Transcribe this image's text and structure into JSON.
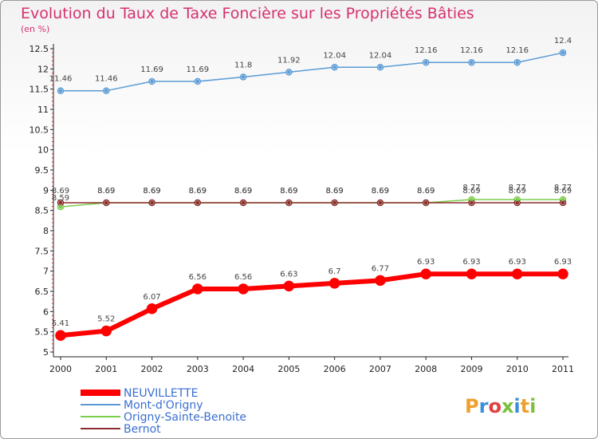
{
  "chart_data": {
    "type": "line",
    "title": "Evolution du Taux de Taxe Foncière sur les Propriétés Bâties",
    "ylabel": "(en %)",
    "xlabel": "",
    "x": [
      "2000",
      "2001",
      "2002",
      "2003",
      "2004",
      "2005",
      "2006",
      "2007",
      "2008",
      "2009",
      "2010",
      "2011"
    ],
    "ylim": [
      5,
      12.5
    ],
    "yticks": [
      "5",
      "5.5",
      "6",
      "6.5",
      "7",
      "7.5",
      "8",
      "8.5",
      "9",
      "9.5",
      "10",
      "10.5",
      "11",
      "11.5",
      "12",
      "12.5"
    ],
    "grid": false,
    "legend_position": "bottom-left",
    "series": [
      {
        "name": "NEUVILLETTE",
        "color": "#ff0000",
        "values": [
          5.41,
          5.52,
          6.07,
          6.56,
          6.56,
          6.63,
          6.7,
          6.77,
          6.93,
          6.93,
          6.93,
          6.93
        ],
        "labels": [
          "5.41",
          "5.52",
          "6.07",
          "6.56",
          "6.56",
          "6.63",
          "6.7",
          "6.77",
          "6.93",
          "6.93",
          "6.93",
          "6.93"
        ]
      },
      {
        "name": "Mont-d'Origny",
        "color": "#5b9bd5",
        "values": [
          11.46,
          11.46,
          11.69,
          11.69,
          11.8,
          11.92,
          12.04,
          12.04,
          12.16,
          12.16,
          12.16,
          12.4
        ],
        "labels": [
          "11.46",
          "11.46",
          "11.69",
          "11.69",
          "11.8",
          "11.92",
          "12.04",
          "12.04",
          "12.16",
          "12.16",
          "12.16",
          "12.4"
        ]
      },
      {
        "name": "Origny-Sainte-Benoite",
        "color": "#7ccd4a",
        "values": [
          8.59,
          8.69,
          8.69,
          8.69,
          8.69,
          8.69,
          8.69,
          8.69,
          8.69,
          8.77,
          8.77,
          8.77
        ],
        "labels": [
          "8.59",
          "8.69",
          "8.69",
          "8.69",
          "8.69",
          "8.69",
          "8.69",
          "8.69",
          "8.69",
          "8.77",
          "8.77",
          "8.77"
        ]
      },
      {
        "name": "Bernot",
        "color": "#8b2d2d",
        "values": [
          8.69,
          8.69,
          8.69,
          8.69,
          8.69,
          8.69,
          8.69,
          8.69,
          8.69,
          8.69,
          8.69,
          8.69
        ],
        "labels": [
          "8.69",
          "8.69",
          "8.69",
          "8.69",
          "8.69",
          "8.69",
          "8.69",
          "8.69",
          "8.69",
          "8.69",
          "8.69",
          "8.69"
        ]
      }
    ]
  },
  "brand": {
    "text": "Proxiti",
    "colors": [
      "#f0a030",
      "#3a8fd8",
      "#e04040",
      "#7cc040",
      "#3a8fd8",
      "#f0a030",
      "#7cc040"
    ]
  }
}
